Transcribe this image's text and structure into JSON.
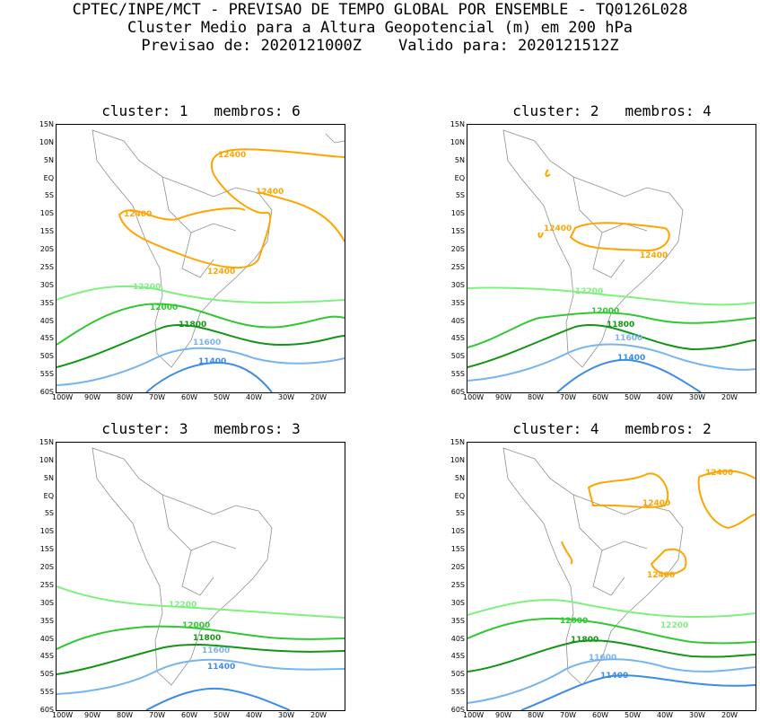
{
  "header": {
    "line1": "CPTEC/INPE/MCT - PREVISAO DE TEMPO GLOBAL POR ENSEMBLE - TQ0126L028",
    "line2": "Cluster Medio para a Altura Geopotencial (m) em 200 hPa",
    "line3": "Previsao de: 2020121000Z    Valido para: 2020121512Z"
  },
  "axis": {
    "lat_ticks": [
      "15N",
      "10N",
      "5N",
      "EQ",
      "5S",
      "10S",
      "15S",
      "20S",
      "25S",
      "30S",
      "35S",
      "40S",
      "45S",
      "50S",
      "55S",
      "60S"
    ],
    "lon_ticks": [
      "100W",
      "90W",
      "80W",
      "70W",
      "60W",
      "50W",
      "40W",
      "30W",
      "20W"
    ]
  },
  "colors": {
    "c12400": "#ffa500",
    "c12200": "#80f080",
    "c12000": "#32c832",
    "c11800": "#149614",
    "c11600": "#78b4f0",
    "c11400": "#3c8ce6",
    "border": "#909090"
  },
  "panels": [
    {
      "title": "cluster: 1   membros: 6",
      "labels": {
        "a": "12400",
        "b": "12400",
        "c": "12400",
        "d": "12400",
        "e": "12200",
        "f": "12000",
        "g": "11800",
        "h": "11600",
        "i": "11400"
      }
    },
    {
      "title": "cluster: 2   membros: 4",
      "labels": {
        "a": "12400",
        "b": "12400",
        "e": "12200",
        "f": "12000",
        "g": "11800",
        "h": "11600",
        "i": "11400"
      }
    },
    {
      "title": "cluster: 3   membros: 3",
      "labels": {
        "e": "12200",
        "f": "12000",
        "g": "11800",
        "h": "11600",
        "i": "11400"
      }
    },
    {
      "title": "cluster: 4   membros: 2",
      "labels": {
        "a": "12400",
        "b": "12400",
        "c": "12400",
        "e": "12200",
        "f": "12000",
        "g": "11800",
        "h": "11600",
        "i": "11400"
      }
    }
  ]
}
